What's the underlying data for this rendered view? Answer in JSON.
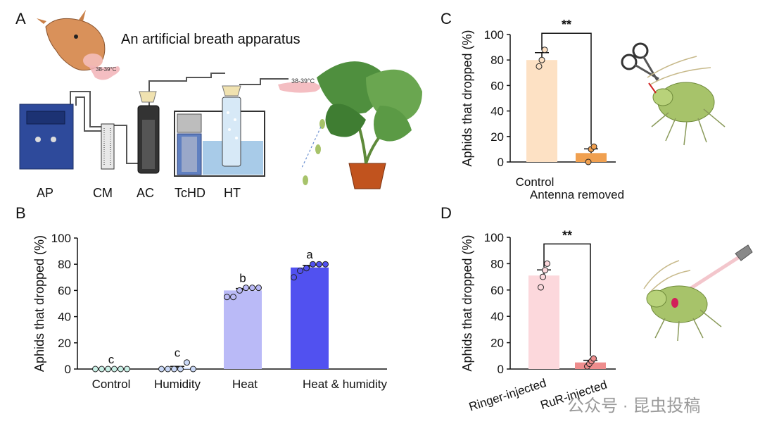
{
  "panel_letters": {
    "a": "A",
    "b": "B",
    "c": "C",
    "d": "D"
  },
  "apparatus": {
    "title": "An artificial breath apparatus",
    "temp_label_cow": "38-39°C",
    "temp_label_tube": "38-39°C",
    "labels": {
      "ap": "AP",
      "cm": "CM",
      "ac": "AC",
      "tchd": "TcHD",
      "ht": "HT"
    }
  },
  "colors": {
    "control_light": "#c9f0e6",
    "humidity_light": "#c9d8f7",
    "heat_light": "#babaf7",
    "heat_humidity": "#5151f0",
    "control_orange_light": "#fde1c4",
    "antenna_orange": "#f0a050",
    "ringer_pink": "#fcd8dc",
    "rur_pink": "#ee8d8d",
    "aphid_green": "#a7c36a",
    "apparatus_blue": "#2e4a9b"
  },
  "watermark": "公众号 · 昆虫投稿",
  "chart_data": [
    {
      "panel": "B",
      "type": "bar",
      "ylabel": "Aphids that dropped (%)",
      "ylim": [
        0,
        100
      ],
      "yticks": [
        "0",
        "20",
        "40",
        "60",
        "80",
        "100"
      ],
      "categories": [
        "Control",
        "Humidity",
        "Heat",
        "Heat  & humidity"
      ],
      "values": [
        0,
        1,
        60,
        77.5
      ],
      "sem": [
        0,
        1,
        1.5,
        1.7
      ],
      "points": [
        [
          0,
          0,
          0,
          0,
          0,
          0
        ],
        [
          0,
          0,
          0,
          0,
          5,
          0
        ],
        [
          55,
          55,
          60,
          62,
          62,
          62
        ],
        [
          70,
          75,
          77,
          80,
          80,
          80
        ]
      ],
      "significance": [
        "c",
        "c",
        "b",
        "a"
      ],
      "colors": [
        "#c9f0e6",
        "#c9d8f7",
        "#babaf7",
        "#5151f0"
      ]
    },
    {
      "panel": "C",
      "type": "bar",
      "ylabel": "Aphids that dropped (%)",
      "ylim": [
        0,
        100
      ],
      "yticks": [
        "0",
        "20",
        "40",
        "60",
        "80",
        "100"
      ],
      "categories": [
        "Control",
        "Antenna removed"
      ],
      "values": [
        80,
        7
      ],
      "sem": [
        5.8,
        3.3
      ],
      "points": [
        [
          75,
          80,
          88
        ],
        [
          0,
          10,
          12
        ]
      ],
      "significance_label": "**",
      "colors": [
        "#fde1c4",
        "#f0a050"
      ]
    },
    {
      "panel": "D",
      "type": "bar",
      "ylabel": "Aphids that dropped (%)",
      "ylim": [
        0,
        100
      ],
      "yticks": [
        "0",
        "20",
        "40",
        "60",
        "80",
        "100"
      ],
      "categories": [
        "Ringer-injected",
        "RuR-injected"
      ],
      "values": [
        71,
        5
      ],
      "sem": [
        4.3,
        1.6
      ],
      "points": [
        [
          62,
          70,
          75,
          80
        ],
        [
          2,
          4,
          6,
          8
        ]
      ],
      "significance_label": "**",
      "colors": [
        "#fcd8dc",
        "#ee8d8d"
      ]
    }
  ]
}
